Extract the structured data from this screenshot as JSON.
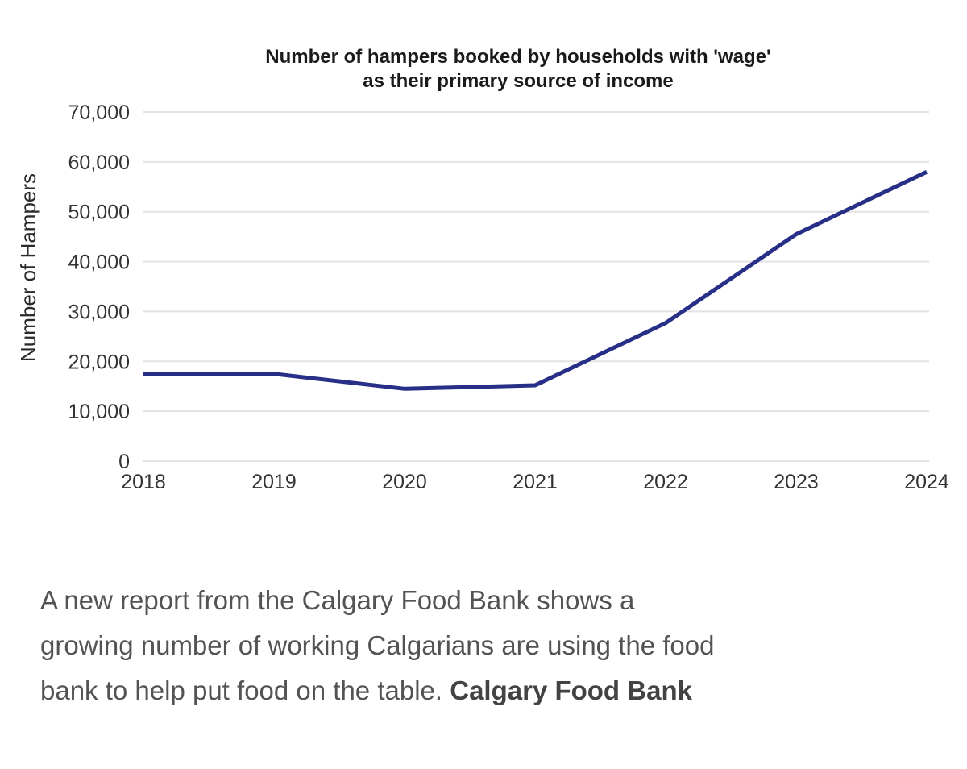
{
  "chart_data": {
    "type": "line",
    "title": "Number of hampers booked by households with 'wage' as their primary source of income",
    "title_lines": [
      "Number of hampers booked by households with 'wage'",
      "as their primary source of income"
    ],
    "xlabel": "",
    "ylabel": "Number of Hampers",
    "x": [
      "2018",
      "2019",
      "2020",
      "2021",
      "2022",
      "2023",
      "2024"
    ],
    "values": [
      17500,
      17500,
      14500,
      15200,
      27700,
      45500,
      58000
    ],
    "ylim": [
      0,
      70000
    ],
    "yticks": [
      0,
      10000,
      20000,
      30000,
      40000,
      50000,
      60000,
      70000
    ],
    "ytick_labels": [
      "0",
      "10,000",
      "20,000",
      "30,000",
      "40,000",
      "50,000",
      "60,000",
      "70,000"
    ],
    "grid": true,
    "legend": false,
    "line_color": "#272f87",
    "grid_color": "#e3e3e3",
    "tick_color": "#333333"
  },
  "caption": {
    "lines": [
      "A new report from the Calgary Food Bank shows a",
      "growing number of working Calgarians are using the food",
      "bank to help put food on the table. "
    ],
    "credit": "Calgary Food Bank"
  }
}
